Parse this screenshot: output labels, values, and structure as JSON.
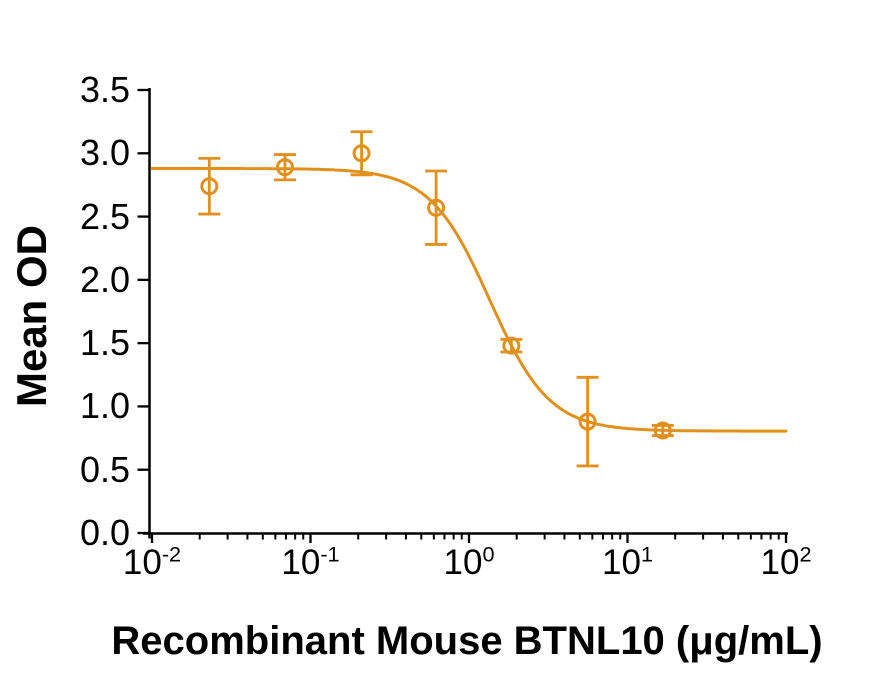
{
  "figure": {
    "background": "#ffffff",
    "axis_color": "#000000",
    "accent_color": "#E0901C"
  },
  "chart_data": {
    "type": "scatter",
    "title": "",
    "xlabel": "Recombinant Mouse BTNL10 (μg/mL)",
    "ylabel": "Mean OD",
    "x_scale": "log10",
    "xlim": [
      0.01,
      100
    ],
    "ylim": [
      0.0,
      3.5
    ],
    "grid": false,
    "legend": false,
    "y_ticks": [
      {
        "value": 0.0,
        "label": "0.0"
      },
      {
        "value": 0.5,
        "label": "0.5"
      },
      {
        "value": 1.0,
        "label": "1.0"
      },
      {
        "value": 1.5,
        "label": "1.5"
      },
      {
        "value": 2.0,
        "label": "2.0"
      },
      {
        "value": 2.5,
        "label": "2.5"
      },
      {
        "value": 3.0,
        "label": "3.0"
      },
      {
        "value": 3.5,
        "label": "3.5"
      }
    ],
    "x_ticks": [
      {
        "value": 0.01,
        "base": "10",
        "exp": "-2"
      },
      {
        "value": 0.1,
        "base": "10",
        "exp": "-1"
      },
      {
        "value": 1,
        "base": "10",
        "exp": "0"
      },
      {
        "value": 10,
        "base": "10",
        "exp": "1"
      },
      {
        "value": 100,
        "base": "10",
        "exp": "2"
      }
    ],
    "series": [
      {
        "name": "Mean OD",
        "marker": "open-circle",
        "color": "#E0901C",
        "points": [
          {
            "x": 0.023,
            "y": 2.74,
            "err": 0.22
          },
          {
            "x": 0.069,
            "y": 2.89,
            "err": 0.1
          },
          {
            "x": 0.21,
            "y": 3.0,
            "err": 0.17
          },
          {
            "x": 0.62,
            "y": 2.57,
            "err": 0.29
          },
          {
            "x": 1.85,
            "y": 1.48,
            "err": 0.05
          },
          {
            "x": 5.6,
            "y": 0.88,
            "err": 0.35
          },
          {
            "x": 16.7,
            "y": 0.81,
            "err": 0.04
          }
        ]
      }
    ],
    "curve_fit": {
      "model": "4PL",
      "top": 2.88,
      "bottom": 0.805,
      "ec50": 1.35,
      "hill": 2.3
    }
  }
}
